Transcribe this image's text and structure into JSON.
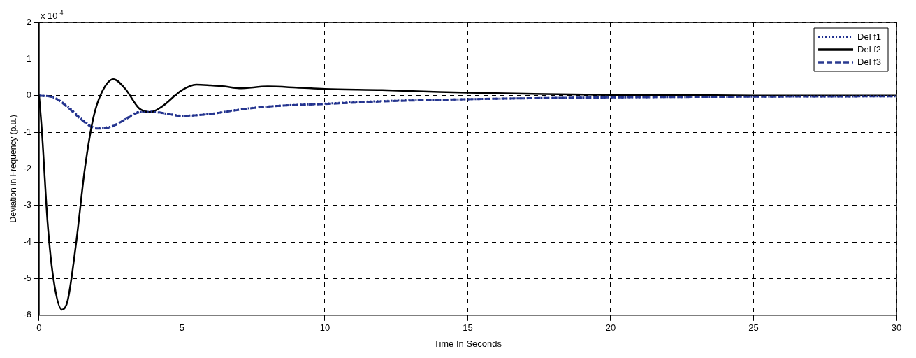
{
  "chart_data": {
    "type": "line",
    "xlabel": "Time In Seconds",
    "ylabel": "Deviation in Frequency (p.u.)",
    "annotations": [
      "x 10$^{-4}$"
    ],
    "xlim": [
      0,
      30
    ],
    "xticks": [
      0,
      5,
      10,
      15,
      20,
      25,
      30
    ],
    "ylim": [
      -6,
      2
    ],
    "yticks": [
      -6,
      -5,
      -4,
      -3,
      -2,
      -1,
      0,
      1,
      2
    ],
    "grid": true,
    "legend": "top right",
    "marker": "none",
    "series": [
      {
        "name": "Del f1",
        "color": "#1f2f8f",
        "line_style": "dotted",
        "x": [
          0,
          0.5,
          1,
          1.5,
          2,
          2.5,
          3,
          3.5,
          4,
          4.5,
          5,
          6,
          7,
          8,
          10,
          12,
          15,
          20,
          25,
          30
        ],
        "values": [
          0,
          -0.05,
          -0.3,
          -0.65,
          -0.88,
          -0.85,
          -0.65,
          -0.45,
          -0.45,
          -0.5,
          -0.55,
          -0.5,
          -0.38,
          -0.3,
          -0.22,
          -0.15,
          -0.1,
          -0.05,
          -0.03,
          -0.02
        ]
      },
      {
        "name": "Del f2",
        "color": "#000000",
        "line_style": "solid",
        "x": [
          0,
          0.1,
          0.3,
          0.5,
          0.8,
          1.0,
          1.3,
          1.6,
          1.9,
          2.2,
          2.6,
          3.0,
          3.5,
          3.9,
          4.3,
          5.0,
          5.5,
          6.0,
          6.5,
          7,
          8,
          9,
          10,
          12,
          14,
          15,
          17,
          20,
          23,
          25,
          30
        ],
        "values": [
          0,
          -1,
          -3.5,
          -5,
          -5.85,
          -5.6,
          -4,
          -2,
          -0.6,
          0.1,
          0.45,
          0.2,
          -0.35,
          -0.45,
          -0.3,
          0.15,
          0.3,
          0.28,
          0.25,
          0.2,
          0.25,
          0.22,
          0.18,
          0.15,
          0.1,
          0.08,
          0.05,
          0.02,
          0.01,
          0,
          0
        ]
      },
      {
        "name": "Del f3",
        "color": "#2a3a90",
        "line_style": "dashed",
        "x": [
          0,
          0.5,
          1,
          1.5,
          2,
          2.5,
          3,
          3.5,
          4,
          4.5,
          5,
          6,
          7,
          8,
          10,
          12,
          15,
          20,
          25,
          30
        ],
        "values": [
          0,
          -0.05,
          -0.32,
          -0.67,
          -0.9,
          -0.86,
          -0.66,
          -0.46,
          -0.44,
          -0.5,
          -0.56,
          -0.5,
          -0.39,
          -0.3,
          -0.23,
          -0.16,
          -0.1,
          -0.05,
          -0.03,
          -0.02
        ]
      }
    ]
  }
}
